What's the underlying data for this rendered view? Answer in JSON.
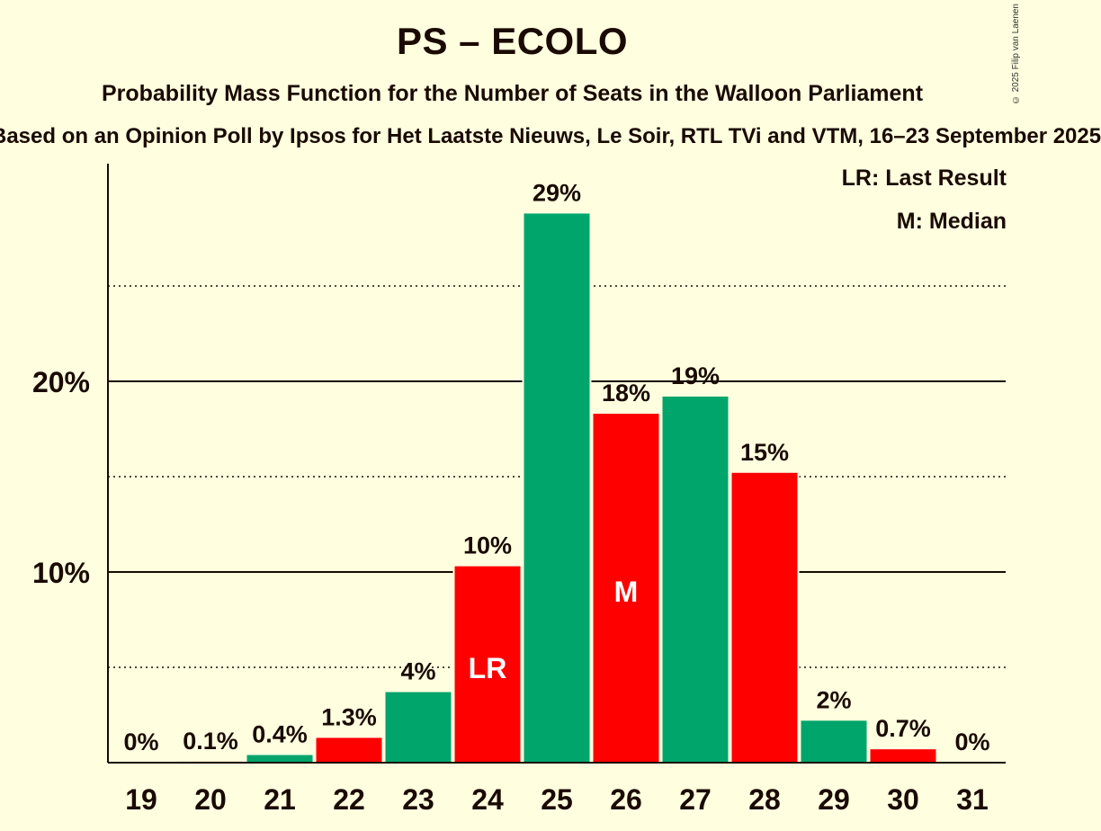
{
  "header": {
    "title": "PS – ECOLO",
    "subtitle": "Probability Mass Function for the Number of Seats in the Walloon Parliament",
    "subsubtitle": "Based on an Opinion Poll by Ipsos for Het Laatste Nieuws, Le Soir, RTL TVi and VTM, 16–23 September 2025",
    "copyright": "© 2025 Filip van Laenen"
  },
  "legend": {
    "last_result": "LR: Last Result",
    "median": "M: Median"
  },
  "colors": {
    "background": "#ffffe0",
    "green": "#00a56b",
    "red": "#ff0000",
    "text": "#1a0a00"
  },
  "chart_data": {
    "type": "bar",
    "title": "PS – ECOLO",
    "xlabel": "",
    "ylabel": "",
    "ylim": [
      0,
      31.5
    ],
    "y_ticks": [
      10,
      20
    ],
    "y_tick_labels": [
      "10%",
      "20%"
    ],
    "y_minor_gridlines": [
      5,
      15,
      25
    ],
    "categories": [
      "19",
      "20",
      "21",
      "22",
      "23",
      "24",
      "25",
      "26",
      "27",
      "28",
      "29",
      "30",
      "31"
    ],
    "values": [
      0,
      0.05,
      0.4,
      1.3,
      3.7,
      10.3,
      28.8,
      18.3,
      19.2,
      15.2,
      2.2,
      0.7,
      0
    ],
    "labels": [
      "0%",
      "0.1%",
      "0.4%",
      "1.3%",
      "4%",
      "10%",
      "29%",
      "18%",
      "19%",
      "15%",
      "2%",
      "0.7%",
      "0%"
    ],
    "bar_colors": [
      "green",
      "red",
      "green",
      "red",
      "green",
      "red",
      "green",
      "red",
      "green",
      "red",
      "green",
      "red",
      "green"
    ],
    "markers": {
      "24": "LR",
      "26": "M"
    }
  }
}
